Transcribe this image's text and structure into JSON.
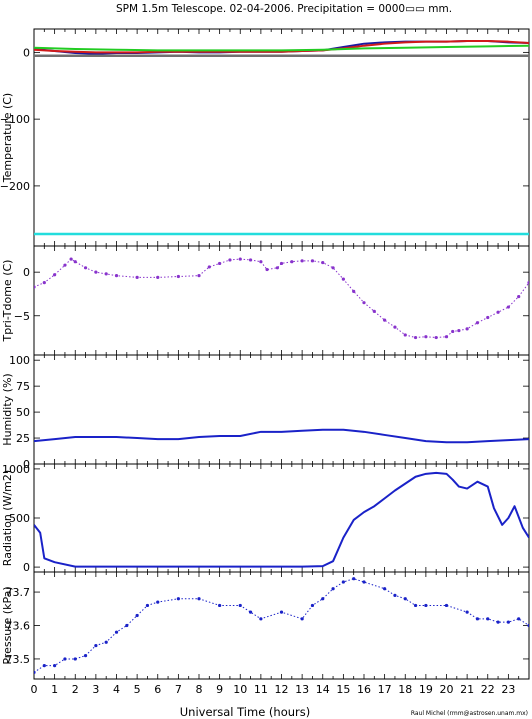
{
  "title": "SPM 1.5m Telescope. 02-04-2006. Precipitation = 0000▭▭ mm.",
  "xlabel": "Universal Time (hours)",
  "credit": "Raul Michel (rmm@astrosen.unam.mx)",
  "x_ticks": [
    "0",
    "1",
    "2",
    "3",
    "4",
    "5",
    "6",
    "7",
    "8",
    "9",
    "10",
    "11",
    "12",
    "13",
    "14",
    "15",
    "16",
    "17",
    "18",
    "19",
    "20",
    "21",
    "22",
    "23"
  ],
  "colors": {
    "navy": "#1a1aa0",
    "red": "#d01a1a",
    "green": "#22cc22",
    "gray": "#707070",
    "cyan": "#22dddd",
    "purple": "#8833cc",
    "blue": "#1a22c8"
  },
  "chart_data": [
    {
      "type": "line",
      "ylabel": "Temperature (C)",
      "ylim": [
        -290,
        35
      ],
      "y_ticks": [
        0,
        -100,
        -200
      ],
      "series": [
        {
          "color": "navy",
          "x": [
            0,
            1,
            2,
            3,
            4,
            5,
            6,
            7,
            8,
            9,
            10,
            11,
            12,
            13,
            14,
            15,
            16,
            17,
            18,
            19,
            20,
            21,
            22,
            23,
            24
          ],
          "values": [
            5,
            2,
            -1,
            -2,
            -1,
            -1,
            0,
            1,
            0,
            0,
            1,
            1,
            1,
            2,
            3,
            8,
            13,
            15,
            16,
            16,
            16,
            17,
            17,
            15,
            14
          ]
        },
        {
          "color": "red",
          "x": [
            0,
            1,
            2,
            3,
            4,
            5,
            6,
            7,
            8,
            9,
            10,
            11,
            12,
            13,
            14,
            15,
            16,
            17,
            18,
            19,
            20,
            21,
            22,
            23,
            24
          ],
          "values": [
            4,
            2,
            1,
            0,
            0,
            0,
            1,
            1,
            1,
            1,
            1,
            1,
            1,
            2,
            3,
            6,
            10,
            13,
            15,
            16,
            16,
            17,
            17,
            16,
            14
          ]
        },
        {
          "color": "green",
          "x": [
            0,
            2,
            4,
            6,
            8,
            10,
            12,
            14,
            16,
            18,
            20,
            22,
            24
          ],
          "values": [
            7,
            5,
            4,
            3,
            3,
            3,
            3,
            4,
            6,
            7,
            8,
            9,
            10
          ]
        },
        {
          "color": "gray",
          "x": [
            0,
            24
          ],
          "values": [
            -5,
            -5
          ]
        },
        {
          "color": "cyan",
          "x": [
            0,
            24
          ],
          "values": [
            -272,
            -272
          ]
        }
      ]
    },
    {
      "type": "scatter",
      "ylabel": "Tpri-Tdome (C)",
      "ylim": [
        -9.5,
        3
      ],
      "y_ticks": [
        0,
        -5
      ],
      "series": [
        {
          "color": "purple",
          "x": [
            0,
            0.5,
            1,
            1.5,
            1.8,
            2,
            2.5,
            3,
            3.5,
            4,
            5,
            6,
            7,
            8,
            8.5,
            9,
            9.5,
            10,
            10.5,
            11,
            11.3,
            11.8,
            12,
            12.5,
            13,
            13.5,
            14,
            14.5,
            15,
            15.5,
            16,
            16.5,
            17,
            17.5,
            18,
            18.5,
            19,
            19.5,
            20,
            20.3,
            20.6,
            21,
            21.5,
            22,
            22.5,
            23,
            23.5,
            24
          ],
          "values": [
            -1.7,
            -1.2,
            -0.3,
            0.8,
            1.5,
            1.2,
            0.5,
            0,
            -0.2,
            -0.4,
            -0.6,
            -0.6,
            -0.5,
            -0.4,
            0.6,
            1.0,
            1.4,
            1.5,
            1.4,
            1.2,
            0.3,
            0.5,
            1.0,
            1.2,
            1.3,
            1.3,
            1.1,
            0.5,
            -0.8,
            -2.2,
            -3.5,
            -4.5,
            -5.5,
            -6.3,
            -7.2,
            -7.5,
            -7.4,
            -7.5,
            -7.4,
            -6.8,
            -6.7,
            -6.5,
            -5.8,
            -5.2,
            -4.6,
            -4.0,
            -2.8,
            -1.2
          ]
        }
      ]
    },
    {
      "type": "line",
      "ylabel": "Humidity (%)",
      "ylim": [
        0,
        105
      ],
      "y_ticks": [
        0,
        25,
        50,
        75,
        100
      ],
      "series": [
        {
          "color": "blue",
          "x": [
            0,
            1,
            2,
            3,
            4,
            5,
            6,
            7,
            8,
            9,
            10,
            11,
            12,
            13,
            14,
            15,
            16,
            17,
            18,
            19,
            20,
            21,
            22,
            23,
            24
          ],
          "values": [
            22,
            24,
            26,
            26,
            26,
            25,
            24,
            24,
            26,
            27,
            27,
            31,
            31,
            32,
            33,
            33,
            31,
            28,
            25,
            22,
            21,
            21,
            22,
            23,
            24
          ]
        }
      ]
    },
    {
      "type": "line",
      "ylabel": "Radiation (W/m2)",
      "ylim": [
        -50,
        1050
      ],
      "y_ticks": [
        0,
        500,
        1000
      ],
      "series": [
        {
          "color": "blue",
          "x": [
            0,
            0.3,
            0.5,
            1,
            2,
            3,
            4,
            5,
            6,
            7,
            8,
            9,
            10,
            11,
            12,
            13,
            14,
            14.5,
            15,
            15.5,
            16,
            16.5,
            17,
            17.5,
            18,
            18.5,
            19,
            19.5,
            20,
            20.3,
            20.6,
            21,
            21.5,
            22,
            22.3,
            22.7,
            23,
            23.3,
            23.7,
            24
          ],
          "values": [
            430,
            350,
            90,
            50,
            5,
            5,
            5,
            5,
            5,
            5,
            5,
            5,
            5,
            5,
            5,
            5,
            10,
            60,
            300,
            480,
            560,
            620,
            700,
            780,
            850,
            920,
            950,
            960,
            950,
            890,
            820,
            800,
            870,
            820,
            600,
            430,
            500,
            620,
            400,
            300
          ]
        }
      ]
    },
    {
      "type": "scatter",
      "ylabel": "Pressure (kPa)",
      "ylim": [
        73.44,
        73.76
      ],
      "y_ticks": [
        73.5,
        73.6,
        73.7
      ],
      "series": [
        {
          "color": "blue",
          "x": [
            0,
            0.5,
            1,
            1.5,
            2,
            2.5,
            3,
            3.5,
            4,
            4.5,
            5,
            5.5,
            6,
            7,
            8,
            9,
            10,
            10.5,
            11,
            12,
            13,
            13.5,
            14,
            14.5,
            15,
            15.5,
            16,
            17,
            17.5,
            18,
            18.5,
            19,
            20,
            21,
            21.5,
            22,
            22.5,
            23,
            23.5,
            24
          ],
          "values": [
            73.46,
            73.48,
            73.48,
            73.5,
            73.5,
            73.51,
            73.54,
            73.55,
            73.58,
            73.6,
            73.63,
            73.66,
            73.67,
            73.68,
            73.68,
            73.66,
            73.66,
            73.64,
            73.62,
            73.64,
            73.62,
            73.66,
            73.68,
            73.71,
            73.73,
            73.74,
            73.73,
            73.71,
            73.69,
            73.68,
            73.66,
            73.66,
            73.66,
            73.64,
            73.62,
            73.62,
            73.61,
            73.61,
            73.62,
            73.6
          ]
        }
      ]
    }
  ]
}
